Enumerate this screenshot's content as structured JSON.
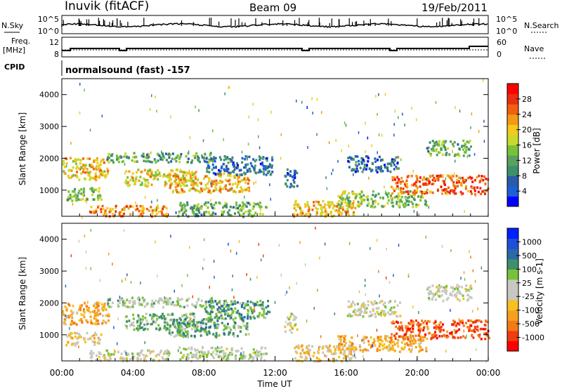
{
  "header": {
    "station": "Inuvik (fitACF)",
    "beam": "Beam 09",
    "date": "19/Feb/2011"
  },
  "panel_labels": {
    "nsky": "N.Sky",
    "nsky_scale": [
      "10^5",
      "10^0"
    ],
    "nsearch": "N.Search",
    "nsearch_scale": [
      "10^5",
      "10^0"
    ],
    "freq": "Freq.",
    "freq_unit": "[MHz]",
    "freq_ticks": [
      "12",
      "8"
    ],
    "nave": "Nave",
    "nave_ticks": [
      "60",
      "0"
    ],
    "cpid_label": "CPID",
    "cpid_value": "normalsound (fast) -157"
  },
  "chart_data": [
    {
      "type": "heatmap",
      "name": "power",
      "xlabel": "Time UT",
      "ylabel": "Slant Range [km]",
      "xlim": [
        0,
        24
      ],
      "ylim": [
        180,
        4500
      ],
      "yticks": [
        1000,
        2000,
        3000,
        4000
      ],
      "colorbar": {
        "label": "Power [dB]",
        "ticks": [
          "28",
          "24",
          "20",
          "16",
          "12",
          "8",
          "4"
        ],
        "colors": [
          "#0000ff",
          "#1d5fd6",
          "#2a5aa8",
          "#3f8f6a",
          "#5aa060",
          "#77c23a",
          "#c8d92c",
          "#f6c81d",
          "#f39a15",
          "#f06010",
          "#e83010",
          "#ff0000"
        ]
      },
      "echo_regions": [
        {
          "t0": 0.0,
          "t1": 2.6,
          "r0": 1350,
          "r1": 2050,
          "v": 21
        },
        {
          "t0": 0.2,
          "t1": 2.2,
          "r0": 700,
          "r1": 1100,
          "v": 15
        },
        {
          "t0": 1.5,
          "t1": 6.0,
          "r0": 200,
          "r1": 550,
          "v": 24
        },
        {
          "t0": 3.5,
          "t1": 7.5,
          "r0": 1150,
          "r1": 1700,
          "v": 20
        },
        {
          "t0": 6.0,
          "t1": 10.5,
          "r0": 950,
          "r1": 1550,
          "v": 22
        },
        {
          "t0": 2.5,
          "t1": 8.5,
          "r0": 1900,
          "r1": 2200,
          "v": 13
        },
        {
          "t0": 8.0,
          "t1": 11.8,
          "r0": 1500,
          "r1": 2100,
          "v": 9
        },
        {
          "t0": 6.5,
          "t1": 11.5,
          "r0": 200,
          "r1": 650,
          "v": 14
        },
        {
          "t0": 13.0,
          "t1": 16.5,
          "r0": 200,
          "r1": 700,
          "v": 22
        },
        {
          "t0": 15.5,
          "t1": 20.5,
          "r0": 500,
          "r1": 1000,
          "v": 16
        },
        {
          "t0": 16.0,
          "t1": 19.0,
          "r0": 1600,
          "r1": 2100,
          "v": 8
        },
        {
          "t0": 18.5,
          "t1": 24.0,
          "r0": 900,
          "r1": 1500,
          "v": 26
        },
        {
          "t0": 20.5,
          "t1": 23.0,
          "r0": 2100,
          "r1": 2600,
          "v": 14
        },
        {
          "t0": 12.5,
          "t1": 13.2,
          "r0": 1100,
          "r1": 1700,
          "v": 7
        }
      ]
    },
    {
      "type": "heatmap",
      "name": "velocity",
      "xlabel": "Time UT",
      "ylabel": "Slant Range [km]",
      "xlim": [
        0,
        24
      ],
      "ylim": [
        180,
        4500
      ],
      "yticks": [
        1000,
        2000,
        3000,
        4000
      ],
      "xticks": [
        "00:00",
        "04:00",
        "08:00",
        "12:00",
        "16:00",
        "20:00",
        "00:00"
      ],
      "colorbar": {
        "label": "Velocity [m s-1]",
        "ticks": [
          "1000",
          "500",
          "100",
          "25",
          "-25",
          "-100",
          "-500",
          "-1000"
        ],
        "colors": [
          "#ff0000",
          "#f03c10",
          "#f27a18",
          "#f6a020",
          "#f5c020",
          "#c8c8c0",
          "#c8c8c0",
          "#77c23a",
          "#3f8f6a",
          "#2a6aa8",
          "#1f4fd8",
          "#0020ff"
        ]
      },
      "echo_regions": [
        {
          "t0": 0.0,
          "t1": 2.6,
          "r0": 1350,
          "r1": 2050,
          "v": -400
        },
        {
          "t0": 0.2,
          "t1": 2.2,
          "r0": 700,
          "r1": 1100,
          "v": -150
        },
        {
          "t0": 1.5,
          "t1": 6.0,
          "r0": 200,
          "r1": 550,
          "v": 0
        },
        {
          "t0": 3.5,
          "t1": 7.5,
          "r0": 1150,
          "r1": 1700,
          "v": 250
        },
        {
          "t0": 6.0,
          "t1": 10.5,
          "r0": 950,
          "r1": 1550,
          "v": 300
        },
        {
          "t0": 2.5,
          "t1": 8.5,
          "r0": 1900,
          "r1": 2200,
          "v": 150
        },
        {
          "t0": 8.0,
          "t1": 11.8,
          "r0": 1500,
          "r1": 2100,
          "v": 400
        },
        {
          "t0": 6.5,
          "t1": 11.5,
          "r0": 200,
          "r1": 650,
          "v": 60
        },
        {
          "t0": 13.0,
          "t1": 16.5,
          "r0": 200,
          "r1": 700,
          "v": -200
        },
        {
          "t0": 15.5,
          "t1": 20.5,
          "r0": 500,
          "r1": 1000,
          "v": -350
        },
        {
          "t0": 16.0,
          "t1": 19.0,
          "r0": 1600,
          "r1": 2100,
          "v": 0
        },
        {
          "t0": 18.5,
          "t1": 24.0,
          "r0": 900,
          "r1": 1500,
          "v": -700
        },
        {
          "t0": 20.5,
          "t1": 23.0,
          "r0": 2100,
          "r1": 2600,
          "v": 0
        },
        {
          "t0": 12.5,
          "t1": 13.2,
          "r0": 1100,
          "r1": 1700,
          "v": 0
        }
      ]
    }
  ]
}
